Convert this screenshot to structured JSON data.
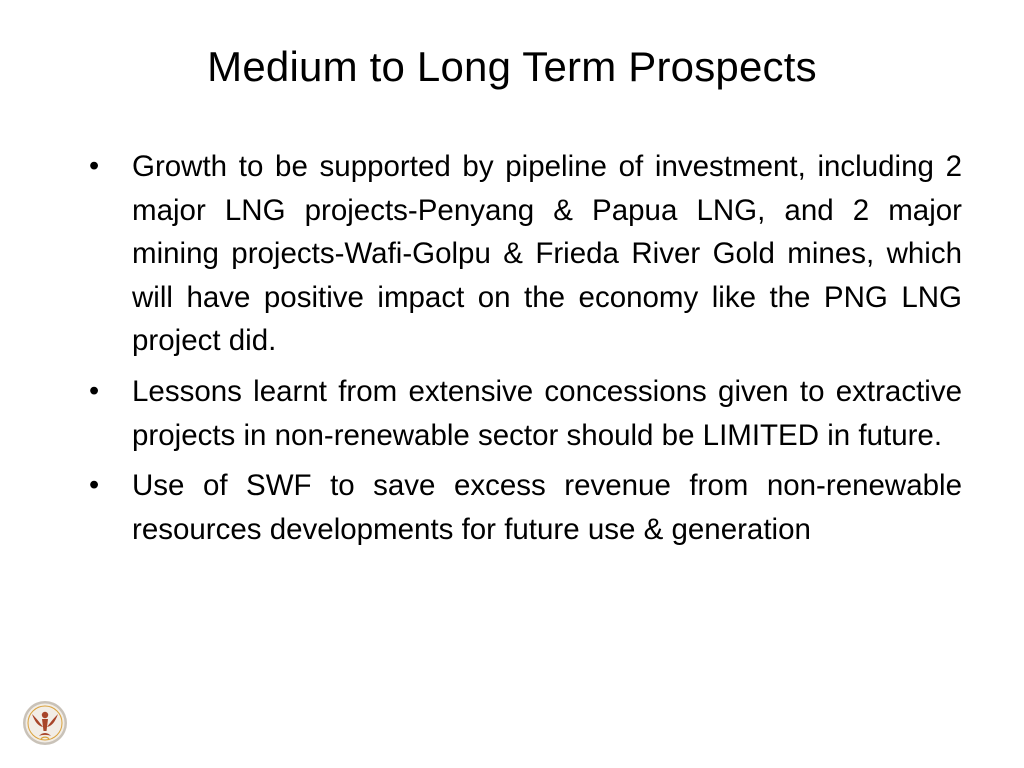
{
  "slide": {
    "title": "Medium to Long Term Prospects",
    "bullets": [
      {
        "mark": "•",
        "text": "Growth to be supported by pipeline of investment, including 2 major LNG projects-Penyang & Papua LNG, and 2 major mining projects-Wafi-Golpu & Frieda River Gold mines, which will have positive impact on the economy like the PNG LNG project did."
      },
      {
        "mark": "•",
        "text": "Lessons learnt from extensive concessions given to extractive projects in non-renewable sector should be LIMITED in future."
      },
      {
        "mark": "•",
        "text": "Use of SWF to save excess revenue from non-renewable resources developments for future use & generation"
      }
    ]
  },
  "logo": {
    "icon": "bird-emblem-icon",
    "colors": {
      "ring": "#c9c2b8",
      "disc": "#f2ede6",
      "emblem": "#a8452a",
      "accent": "#d9a13b"
    }
  }
}
